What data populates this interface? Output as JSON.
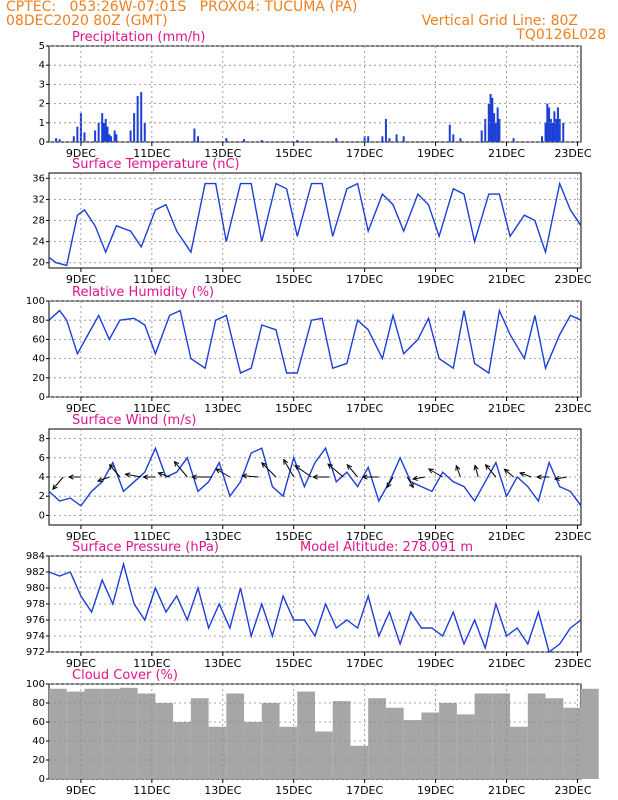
{
  "header": {
    "line1": "CPTEC:   053:26W-07:01S   PROX04: TUCUMA (PA)",
    "line2_left": "08DEC2020 80Z (GMT)",
    "line2_right": "Vertical Grid Line: 80Z",
    "line3_right": "TQ0126L028"
  },
  "colors": {
    "header": "#f07f1e",
    "title": "#e0148c",
    "line": "#1c3fd8",
    "cloud": "#a6a6a6"
  },
  "chart_data": [
    {
      "type": "bar",
      "title": "Precipitation (mm/h)",
      "ylim": [
        0,
        5
      ],
      "yticks": [
        0,
        1,
        2,
        3,
        4,
        5
      ],
      "xticklabels": [
        "9DEC",
        "11DEC",
        "13DEC",
        "15DEC",
        "17DEC",
        "19DEC",
        "21DEC",
        "23DEC"
      ],
      "x_unit": "days since 08DEC2020 08Z",
      "x": [
        0.2,
        0.3,
        0.7,
        0.8,
        0.9,
        1.0,
        1.3,
        1.4,
        1.5,
        1.55,
        1.6,
        1.65,
        1.7,
        1.75,
        1.85,
        1.9,
        2.3,
        2.4,
        2.5,
        2.6,
        2.7,
        4.1,
        4.2,
        5.0,
        5.5,
        6.0,
        7.0,
        8.1,
        8.9,
        9.0,
        9.4,
        9.5,
        9.6,
        9.8,
        10.0,
        11.3,
        11.4,
        11.6,
        12.2,
        12.3,
        12.4,
        12.45,
        12.5,
        12.55,
        12.6,
        12.65,
        12.7,
        13.1,
        13.9,
        14.0,
        14.05,
        14.1,
        14.15,
        14.2,
        14.25,
        14.3,
        14.35,
        14.4,
        14.5
      ],
      "values": [
        0.2,
        0.15,
        0.3,
        0.8,
        1.5,
        0.5,
        0.6,
        1.0,
        1.5,
        1.0,
        1.2,
        0.8,
        0.4,
        0.3,
        0.6,
        0.4,
        0.6,
        1.5,
        2.4,
        2.6,
        1.0,
        0.7,
        0.3,
        0.2,
        0.15,
        0.1,
        0.1,
        0.2,
        0.3,
        0.3,
        0.3,
        1.2,
        0.2,
        0.4,
        0.3,
        0.9,
        0.4,
        0.2,
        0.6,
        1.2,
        2.0,
        2.5,
        2.3,
        1.5,
        1.0,
        1.8,
        1.2,
        0.2,
        0.3,
        1.0,
        2.0,
        1.8,
        1.2,
        1.0,
        1.6,
        1.2,
        1.8,
        1.2,
        1.0
      ]
    },
    {
      "type": "line",
      "title": "Surface Temperature (nC)",
      "ylim": [
        19,
        37
      ],
      "yticks": [
        20,
        24,
        28,
        32,
        36
      ],
      "xticklabels": [
        "9DEC",
        "11DEC",
        "13DEC",
        "15DEC",
        "17DEC",
        "19DEC",
        "21DEC",
        "23DEC"
      ],
      "x_unit": "days since 08DEC2020 08Z",
      "x": [
        0,
        0.2,
        0.5,
        0.8,
        1.0,
        1.3,
        1.6,
        1.9,
        2.3,
        2.6,
        3.0,
        3.3,
        3.6,
        4.0,
        4.4,
        4.7,
        5.0,
        5.4,
        5.7,
        6.0,
        6.4,
        6.7,
        7.0,
        7.4,
        7.7,
        8.0,
        8.4,
        8.7,
        9.0,
        9.4,
        9.7,
        10.0,
        10.4,
        10.7,
        11.0,
        11.4,
        11.7,
        12.0,
        12.4,
        12.7,
        13.0,
        13.4,
        13.7,
        14.0,
        14.4,
        14.7,
        15.0
      ],
      "values": [
        21,
        20,
        19.5,
        29,
        30,
        27,
        22,
        27,
        26,
        23,
        30,
        31,
        26,
        22,
        35,
        35,
        24,
        35,
        35,
        24,
        35,
        34,
        25,
        35,
        35,
        25,
        34,
        35,
        26,
        33,
        31,
        26,
        33,
        31,
        25,
        34,
        33,
        24,
        33,
        33,
        25,
        29,
        28,
        22,
        35,
        30,
        27
      ]
    },
    {
      "type": "line",
      "title": "Relative Humidity (%)",
      "ylim": [
        0,
        100
      ],
      "yticks": [
        0,
        20,
        40,
        60,
        80,
        100
      ],
      "xticklabels": [
        "9DEC",
        "11DEC",
        "13DEC",
        "15DEC",
        "17DEC",
        "19DEC",
        "21DEC",
        "23DEC"
      ],
      "x_unit": "days since 08DEC2020 08Z",
      "x": [
        0,
        0.3,
        0.5,
        0.8,
        1.1,
        1.4,
        1.7,
        2.0,
        2.4,
        2.7,
        3.0,
        3.4,
        3.7,
        4.0,
        4.4,
        4.7,
        5.0,
        5.4,
        5.7,
        6.0,
        6.4,
        6.7,
        7.0,
        7.4,
        7.7,
        8.0,
        8.4,
        8.7,
        9.0,
        9.4,
        9.7,
        10.0,
        10.4,
        10.7,
        11.0,
        11.4,
        11.7,
        12.0,
        12.4,
        12.7,
        13.0,
        13.4,
        13.7,
        14.0,
        14.4,
        14.7,
        15.0
      ],
      "values": [
        80,
        90,
        80,
        45,
        65,
        85,
        60,
        80,
        82,
        75,
        45,
        85,
        90,
        40,
        30,
        80,
        85,
        25,
        30,
        75,
        70,
        25,
        25,
        80,
        82,
        30,
        35,
        80,
        70,
        40,
        85,
        45,
        60,
        82,
        40,
        30,
        90,
        35,
        25,
        90,
        65,
        40,
        85,
        30,
        65,
        85,
        80
      ]
    },
    {
      "type": "line",
      "title": "Surface Wind (m/s)",
      "ylim": [
        -1,
        9
      ],
      "yticks": [
        0,
        2,
        4,
        6,
        8
      ],
      "xticklabels": [
        "9DEC",
        "11DEC",
        "13DEC",
        "15DEC",
        "17DEC",
        "19DEC",
        "21DEC",
        "23DEC"
      ],
      "x_unit": "days since 08DEC2020 08Z",
      "x": [
        0,
        0.3,
        0.6,
        0.9,
        1.2,
        1.5,
        1.8,
        2.1,
        2.4,
        2.7,
        3.0,
        3.3,
        3.6,
        3.9,
        4.2,
        4.5,
        4.8,
        5.1,
        5.4,
        5.7,
        6.0,
        6.3,
        6.6,
        6.9,
        7.2,
        7.5,
        7.8,
        8.1,
        8.4,
        8.7,
        9.0,
        9.3,
        9.6,
        9.9,
        10.2,
        10.5,
        10.8,
        11.1,
        11.4,
        11.7,
        12.0,
        12.3,
        12.6,
        12.9,
        13.2,
        13.5,
        13.8,
        14.1,
        14.4,
        14.7,
        15.0
      ],
      "values": [
        2.5,
        1.5,
        1.8,
        1,
        2.5,
        3.5,
        5.5,
        2.5,
        3.5,
        4.5,
        7,
        4,
        4.5,
        6,
        2.5,
        3.5,
        5.5,
        2,
        3.5,
        6.5,
        7,
        3,
        2,
        6,
        3,
        5.5,
        7,
        3.5,
        4.5,
        3,
        5,
        1.5,
        3.5,
        6,
        3.5,
        3,
        2.5,
        4.5,
        3.5,
        3,
        1.5,
        3.5,
        5.5,
        2,
        4,
        3,
        1.5,
        5.5,
        3,
        2.5,
        1
      ]
    },
    {
      "type": "line",
      "title": "Surface Pressure (hPa)",
      "annotation": "Model Altitude: 278.091  m",
      "ylim": [
        972,
        984
      ],
      "yticks": [
        972,
        974,
        976,
        978,
        980,
        982,
        984
      ],
      "xticklabels": [
        "9DEC",
        "11DEC",
        "13DEC",
        "15DEC",
        "17DEC",
        "19DEC",
        "21DEC",
        "23DEC"
      ],
      "x_unit": "days since 08DEC2020 08Z",
      "x": [
        0,
        0.3,
        0.6,
        0.9,
        1.2,
        1.5,
        1.8,
        2.1,
        2.4,
        2.7,
        3.0,
        3.3,
        3.6,
        3.9,
        4.2,
        4.5,
        4.8,
        5.1,
        5.4,
        5.7,
        6.0,
        6.3,
        6.6,
        6.9,
        7.2,
        7.5,
        7.8,
        8.1,
        8.4,
        8.7,
        9.0,
        9.3,
        9.6,
        9.9,
        10.2,
        10.5,
        10.8,
        11.1,
        11.4,
        11.7,
        12.0,
        12.3,
        12.6,
        12.9,
        13.2,
        13.5,
        13.8,
        14.1,
        14.4,
        14.7,
        15.0
      ],
      "values": [
        982,
        981.5,
        982,
        979,
        977,
        981,
        978,
        983,
        978,
        976,
        980,
        977,
        979,
        976,
        980,
        975,
        978,
        975,
        980,
        974,
        978,
        974,
        979,
        976,
        976,
        974,
        978,
        975,
        976,
        975,
        979,
        974,
        977,
        973,
        977,
        975,
        975,
        974,
        977,
        973,
        976,
        972.5,
        978,
        974,
        975,
        973,
        977,
        972,
        973,
        975,
        976
      ]
    },
    {
      "type": "bar",
      "title": "Cloud Cover (%)",
      "ylim": [
        0,
        100
      ],
      "yticks": [
        0,
        20,
        40,
        60,
        80,
        100
      ],
      "xticklabels": [
        "9DEC",
        "11DEC",
        "13DEC",
        "15DEC",
        "17DEC",
        "19DEC",
        "21DEC",
        "23DEC"
      ],
      "x_unit": "days since 08DEC2020 08Z",
      "x": [
        0,
        0.5,
        0.6,
        1.0,
        1.5,
        2.0,
        2.5,
        3.0,
        3.5,
        4.0,
        4.5,
        5.0,
        5.5,
        6.0,
        6.5,
        7.0,
        7.5,
        8.0,
        8.5,
        9.0,
        9.5,
        10.0,
        10.5,
        11.0,
        11.5,
        12.0,
        12.5,
        13.0,
        13.5,
        14.0,
        14.5,
        15.0
      ],
      "values": [
        95,
        92,
        8,
        95,
        95,
        96,
        90,
        80,
        60,
        85,
        55,
        90,
        60,
        80,
        55,
        92,
        50,
        82,
        35,
        85,
        75,
        62,
        70,
        80,
        68,
        90,
        90,
        55,
        90,
        85,
        75,
        95
      ]
    }
  ],
  "wind_vectors": {
    "x": [
      0.4,
      0.9,
      1.7,
      2.0,
      2.6,
      3.0,
      3.4,
      3.9,
      4.6,
      5.1,
      5.9,
      6.4,
      6.9,
      7.4,
      7.9,
      8.3,
      8.7,
      9.3,
      9.7,
      10.1,
      10.6,
      11.1,
      11.6,
      12.1,
      12.6,
      13.1,
      13.6,
      14.1,
      14.6
    ],
    "angle_deg": [
      130,
      180,
      160,
      230,
      190,
      180,
      200,
      230,
      180,
      210,
      185,
      225,
      240,
      215,
      180,
      220,
      230,
      180,
      120,
      60,
      170,
      210,
      250,
      255,
      230,
      220,
      200,
      180,
      170
    ],
    "length_data": [
      0.4,
      0.3,
      0.3,
      0.4,
      0.4,
      0.3,
      0.3,
      0.5,
      0.5,
      0.4,
      0.4,
      0.5,
      0.5,
      0.5,
      0.4,
      0.5,
      0.4,
      0.4,
      0.3,
      0.3,
      0.3,
      0.4,
      0.3,
      0.3,
      0.4,
      0.3,
      0.3,
      0.3,
      0.3
    ]
  }
}
